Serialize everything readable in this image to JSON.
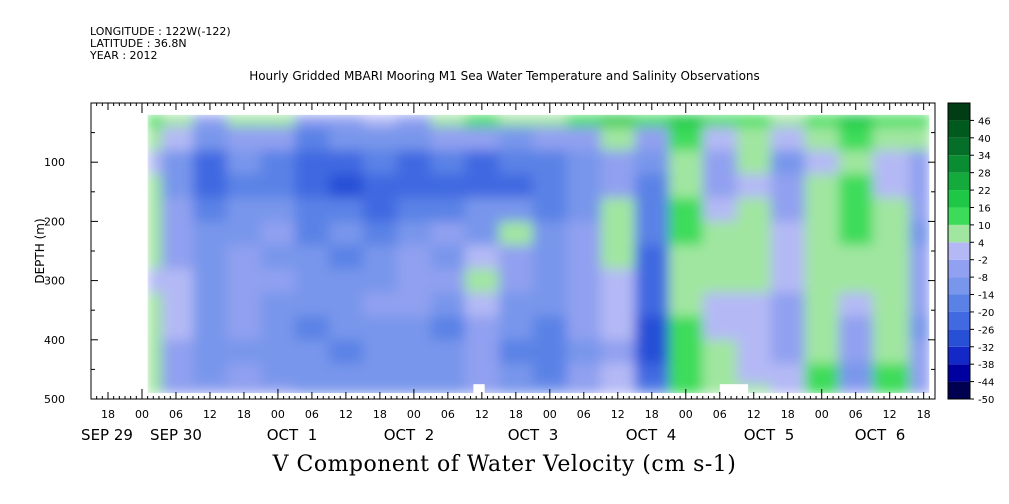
{
  "header": {
    "longitude": "LONGITUDE : 122W(-122)",
    "latitude": "LATITUDE : 36.8N",
    "year": "YEAR : 2012"
  },
  "chart_data": {
    "type": "heatmap",
    "title": "Hourly Gridded MBARI Mooring M1 Sea Water Temperature and Salinity Observations",
    "footer_label": "V Component of Water Velocity (cm s-1)",
    "ylabel": "DEPTH (m)",
    "xlabel": "",
    "y_axis": {
      "range": [
        0,
        500
      ],
      "reversed": true,
      "ticks": [
        100,
        200,
        300,
        400,
        500
      ]
    },
    "x_axis": {
      "unit": "hours since SEP 29 00:00, 2012",
      "range": [
        -9,
        140
      ],
      "hour_ticks": [
        {
          "t": -6,
          "label": "18"
        },
        {
          "t": 0,
          "label": "00"
        },
        {
          "t": 6,
          "label": "06"
        },
        {
          "t": 12,
          "label": "12"
        },
        {
          "t": 18,
          "label": "18"
        },
        {
          "t": 24,
          "label": "00"
        },
        {
          "t": 30,
          "label": "06"
        },
        {
          "t": 36,
          "label": "12"
        },
        {
          "t": 42,
          "label": "18"
        },
        {
          "t": 48,
          "label": "00"
        },
        {
          "t": 54,
          "label": "06"
        },
        {
          "t": 60,
          "label": "12"
        },
        {
          "t": 66,
          "label": "18"
        },
        {
          "t": 72,
          "label": "00"
        },
        {
          "t": 78,
          "label": "06"
        },
        {
          "t": 84,
          "label": "12"
        },
        {
          "t": 90,
          "label": "18"
        },
        {
          "t": 96,
          "label": "00"
        },
        {
          "t": 102,
          "label": "06"
        },
        {
          "t": 108,
          "label": "12"
        },
        {
          "t": 114,
          "label": "18"
        },
        {
          "t": 120,
          "label": "00"
        },
        {
          "t": 126,
          "label": "06"
        },
        {
          "t": 132,
          "label": "12"
        },
        {
          "t": 138,
          "label": "18"
        }
      ],
      "day_labels": [
        {
          "t": 0,
          "label": "SEP 29"
        },
        {
          "t": 24,
          "label": "SEP 30"
        },
        {
          "t": 48,
          "label": "OCT  1"
        },
        {
          "t": 72,
          "label": "OCT  2"
        },
        {
          "t": 96,
          "label": "OCT  3"
        },
        {
          "t": 120,
          "label": "OCT  4"
        },
        {
          "t": 144,
          "label": "OCT  5"
        },
        {
          "t": 168,
          "label": "OCT  6"
        }
      ]
    },
    "colorbar": {
      "levels": [
        "46",
        "40",
        "34",
        "28",
        "22",
        "16",
        "10",
        "4",
        "-2",
        "-8",
        "-14",
        "-20",
        "-26",
        "-32",
        "-38",
        "-44",
        "-50"
      ],
      "range": [
        -50,
        52
      ]
    },
    "data_extent": {
      "t_start": 1,
      "t_end": 139,
      "depth_top": 20,
      "depth_bottom": 490
    },
    "velocity_field": {
      "depths": [
        20,
        60,
        100,
        140,
        180,
        220,
        260,
        300,
        340,
        380,
        420,
        460,
        490
      ],
      "times": [
        1,
        6,
        12,
        18,
        24,
        30,
        36,
        42,
        48,
        54,
        60,
        66,
        72,
        78,
        84,
        90,
        96,
        102,
        108,
        114,
        120,
        126,
        132,
        139
      ],
      "values_by_depth": [
        [
          10,
          6,
          -4,
          8,
          4,
          -8,
          -4,
          2,
          -6,
          4,
          12,
          8,
          4,
          10,
          16,
          12,
          18,
          10,
          14,
          8,
          12,
          16,
          10,
          12
        ],
        [
          6,
          2,
          -14,
          -6,
          -8,
          -16,
          -12,
          -10,
          -14,
          -8,
          -6,
          -10,
          -8,
          -4,
          4,
          -6,
          10,
          2,
          8,
          -2,
          6,
          10,
          4,
          6
        ],
        [
          2,
          -10,
          -22,
          -14,
          -16,
          -24,
          -22,
          -20,
          -24,
          -18,
          -22,
          -20,
          -16,
          -12,
          -4,
          -14,
          6,
          -6,
          4,
          -10,
          2,
          8,
          -2,
          -4
        ],
        [
          4,
          -12,
          -24,
          -16,
          -18,
          -26,
          -28,
          -24,
          -26,
          -22,
          -26,
          -24,
          -20,
          -14,
          -8,
          -16,
          4,
          -8,
          2,
          -8,
          4,
          10,
          0,
          -6
        ],
        [
          8,
          -8,
          -18,
          -12,
          -14,
          -20,
          -20,
          -22,
          -18,
          -16,
          -14,
          -10,
          -16,
          -10,
          6,
          -18,
          12,
          2,
          8,
          -4,
          6,
          12,
          4,
          -8
        ],
        [
          6,
          -6,
          -14,
          -10,
          -8,
          -16,
          -14,
          -16,
          -12,
          -6,
          -10,
          4,
          -14,
          -8,
          8,
          -20,
          10,
          4,
          6,
          -2,
          8,
          10,
          6,
          -10
        ],
        [
          4,
          -4,
          -12,
          -6,
          -10,
          -14,
          -16,
          -12,
          -6,
          -10,
          2,
          -8,
          -12,
          -6,
          4,
          -22,
          8,
          6,
          4,
          0,
          6,
          8,
          8,
          -8
        ],
        [
          2,
          -2,
          -10,
          -4,
          -8,
          -12,
          -12,
          -10,
          -4,
          -8,
          4,
          -6,
          -10,
          -4,
          2,
          -24,
          6,
          4,
          4,
          -2,
          4,
          6,
          6,
          -6
        ],
        [
          6,
          0,
          -12,
          -6,
          -12,
          -14,
          -10,
          -8,
          -8,
          -12,
          0,
          -10,
          -14,
          -6,
          0,
          -26,
          8,
          2,
          2,
          -4,
          6,
          2,
          4,
          -8
        ],
        [
          4,
          -2,
          -14,
          -8,
          -14,
          -16,
          -14,
          -10,
          -12,
          -16,
          -4,
          -14,
          -16,
          -8,
          -2,
          -28,
          10,
          0,
          0,
          -6,
          8,
          -4,
          6,
          -10
        ],
        [
          6,
          -4,
          -12,
          -10,
          -12,
          -14,
          -16,
          -12,
          -14,
          -14,
          -8,
          -16,
          -18,
          -10,
          -4,
          -30,
          12,
          4,
          -2,
          -4,
          8,
          -8,
          8,
          -8
        ],
        [
          8,
          -6,
          -10,
          -8,
          -10,
          -12,
          -14,
          -14,
          -12,
          -12,
          -6,
          -14,
          -16,
          -8,
          0,
          -26,
          14,
          6,
          2,
          -2,
          10,
          -10,
          10,
          -6
        ],
        [
          8,
          -4,
          -8,
          -6,
          -8,
          -10,
          -12,
          -12,
          -10,
          -10,
          -4,
          -12,
          -14,
          -6,
          2,
          -20,
          12,
          8,
          4,
          0,
          10,
          -6,
          12,
          -4
        ]
      ]
    },
    "missing_patches": [
      {
        "t0": 58.5,
        "t1": 60.5,
        "depth0": 475,
        "depth1": 490
      },
      {
        "t0": 102,
        "t1": 107,
        "depth0": 475,
        "depth1": 490
      }
    ]
  }
}
